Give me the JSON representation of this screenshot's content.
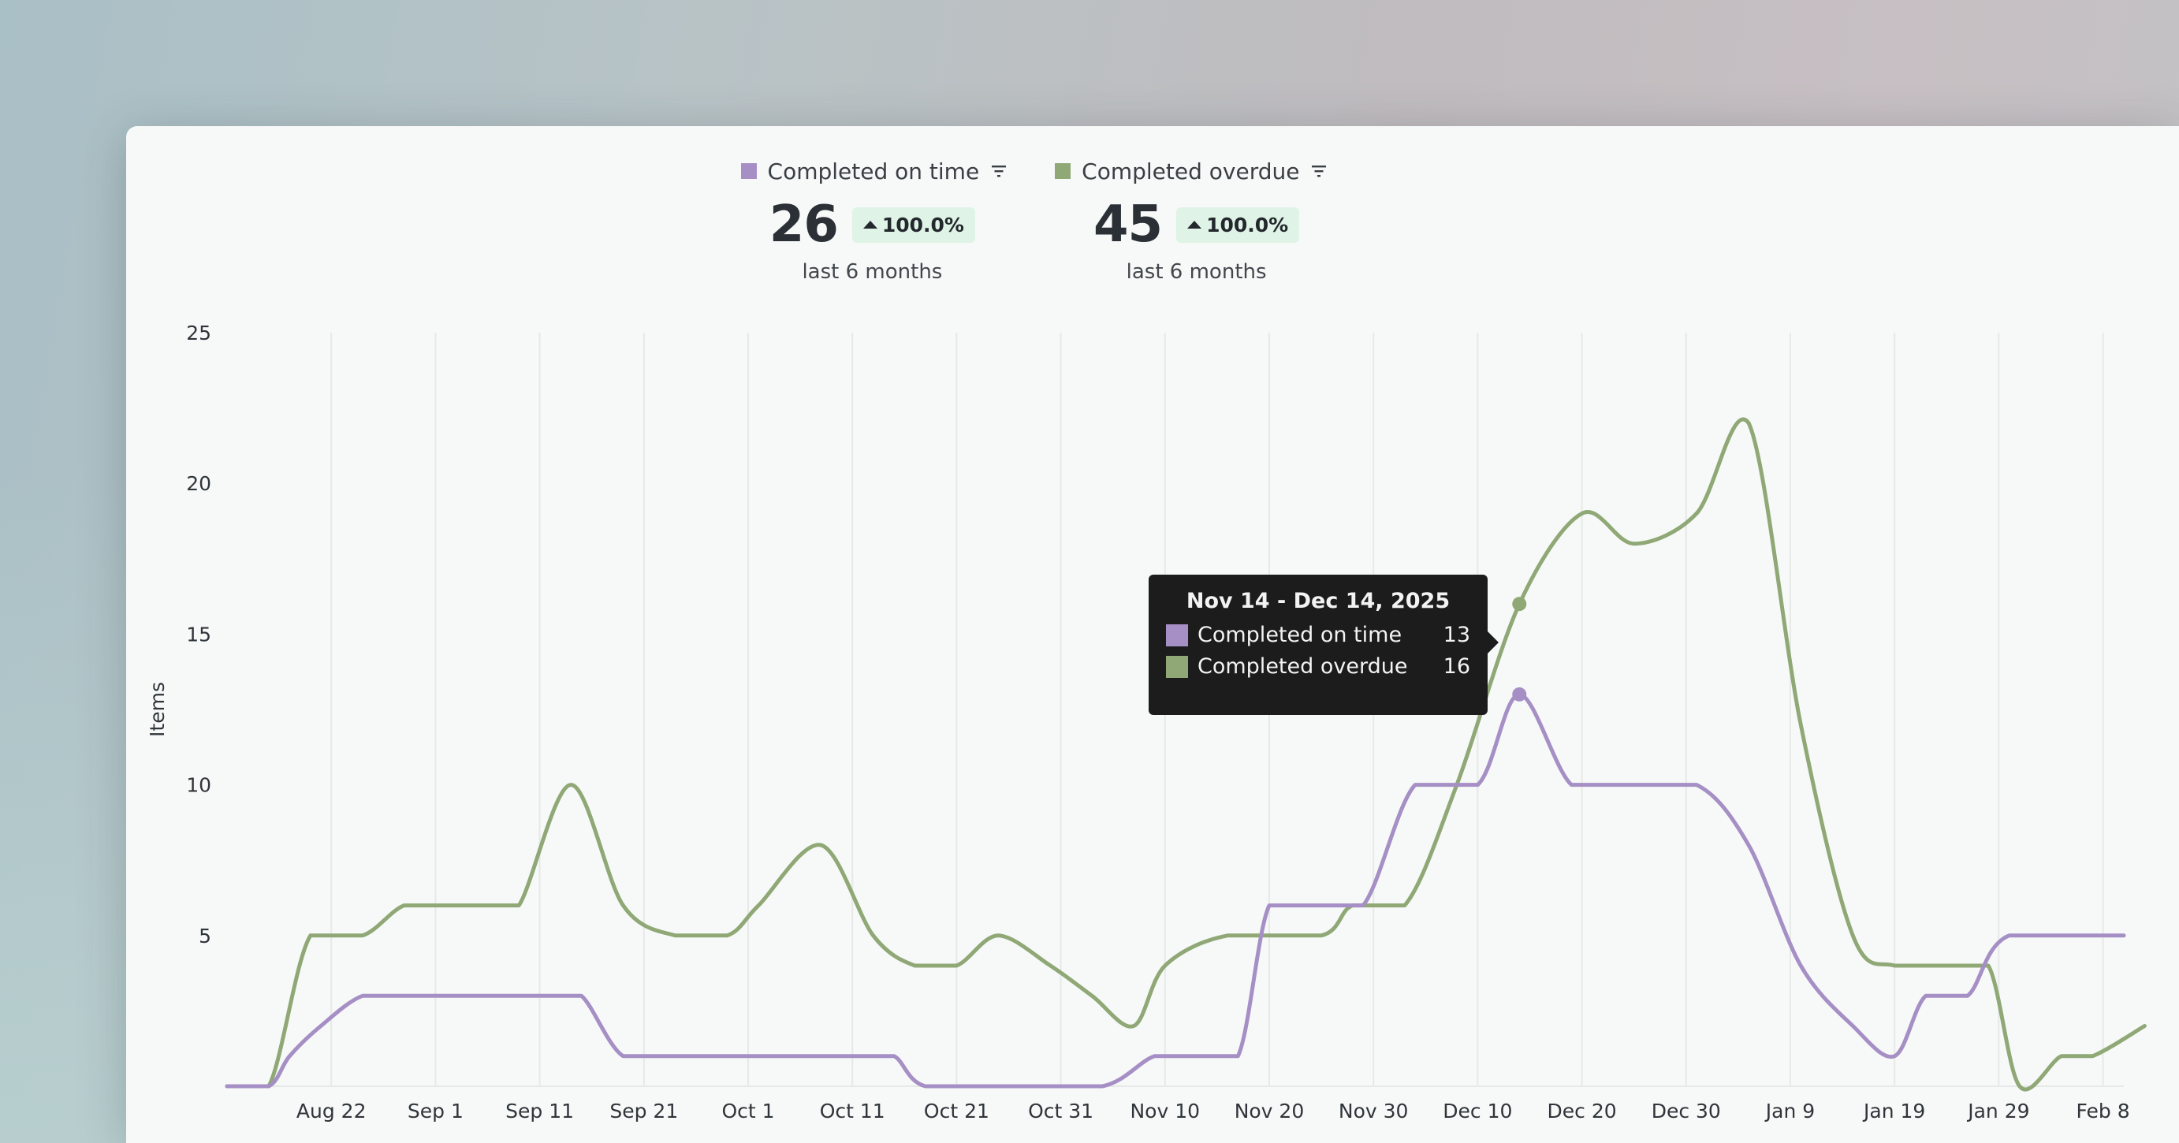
{
  "legend": {
    "items": [
      {
        "label": "Completed on time",
        "color": "#a58fc5",
        "icon": "filter-icon"
      },
      {
        "label": "Completed overdue",
        "color": "#8fa876",
        "icon": "filter-icon"
      }
    ]
  },
  "stats": [
    {
      "value": "26",
      "change": "100.0%",
      "period": "last 6 months"
    },
    {
      "value": "45",
      "change": "100.0%",
      "period": "last 6 months"
    }
  ],
  "tooltip": {
    "title": "Nov 14 - Dec 14, 2025",
    "rows": [
      {
        "label": "Completed on time",
        "value": "13",
        "color": "#a58fc5"
      },
      {
        "label": "Completed overdue",
        "value": "16",
        "color": "#8fa876"
      }
    ]
  },
  "chart_data": {
    "type": "line",
    "ylabel": "Items",
    "xlabel": "",
    "ylim": [
      0,
      25
    ],
    "yticks": [
      "25",
      "20",
      "15",
      "10",
      "5"
    ],
    "xticks": [
      "Aug 22",
      "Sep 1",
      "Sep 11",
      "Sep 21",
      "Oct 1",
      "Oct 11",
      "Oct 21",
      "Oct 31",
      "Nov 10",
      "Nov 20",
      "Nov 30",
      "Dec 10",
      "Dec 20",
      "Dec 30",
      "Jan 9",
      "Jan 19",
      "Jan 29",
      "Feb 8"
    ],
    "grid": true,
    "x_start": "Aug 12",
    "x_end": "Feb 10",
    "series": [
      {
        "name": "Completed on time",
        "color": "#a58fc5",
        "points": [
          [
            "Aug 12",
            0
          ],
          [
            "Aug 16",
            0
          ],
          [
            "Aug 18",
            1
          ],
          [
            "Aug 21",
            2
          ],
          [
            "Aug 25",
            3
          ],
          [
            "Aug 29",
            3
          ],
          [
            "Sep 5",
            3
          ],
          [
            "Sep 12",
            3
          ],
          [
            "Sep 15",
            3
          ],
          [
            "Sep 19",
            1
          ],
          [
            "Sep 24",
            1
          ],
          [
            "Oct 4",
            1
          ],
          [
            "Oct 12",
            1
          ],
          [
            "Oct 15",
            1
          ],
          [
            "Oct 18",
            0
          ],
          [
            "Oct 26",
            0
          ],
          [
            "Nov 4",
            0
          ],
          [
            "Nov 9",
            1
          ],
          [
            "Nov 13",
            1
          ],
          [
            "Nov 17",
            1
          ],
          [
            "Nov 20",
            6
          ],
          [
            "Nov 24",
            6
          ],
          [
            "Nov 29",
            6
          ],
          [
            "Dec 4",
            10
          ],
          [
            "Dec 10",
            10
          ],
          [
            "Dec 14",
            13
          ],
          [
            "Dec 19",
            10
          ],
          [
            "Dec 24",
            10
          ],
          [
            "Dec 31",
            10
          ],
          [
            "Jan 5",
            8
          ],
          [
            "Jan 10",
            4
          ],
          [
            "Jan 15",
            2
          ],
          [
            "Jan 19",
            1
          ],
          [
            "Jan 22",
            3
          ],
          [
            "Jan 26",
            3
          ],
          [
            "Jan 30",
            5
          ],
          [
            "Feb 10",
            5
          ]
        ]
      },
      {
        "name": "Completed overdue",
        "color": "#8fa876",
        "points": [
          [
            "Aug 12",
            0
          ],
          [
            "Aug 16",
            0
          ],
          [
            "Aug 20",
            5
          ],
          [
            "Aug 25",
            5
          ],
          [
            "Aug 29",
            6
          ],
          [
            "Sep 2",
            6
          ],
          [
            "Sep 6",
            6
          ],
          [
            "Sep 9",
            6
          ],
          [
            "Sep 14",
            10
          ],
          [
            "Sep 19",
            6
          ],
          [
            "Sep 24",
            5
          ],
          [
            "Sep 29",
            5
          ],
          [
            "Oct 2",
            6
          ],
          [
            "Oct 8",
            8
          ],
          [
            "Oct 13",
            5
          ],
          [
            "Oct 17",
            4
          ],
          [
            "Oct 21",
            4
          ],
          [
            "Oct 25",
            5
          ],
          [
            "Oct 30",
            4
          ],
          [
            "Nov 3",
            3
          ],
          [
            "Nov 7",
            2
          ],
          [
            "Nov 10",
            4
          ],
          [
            "Nov 16",
            5
          ],
          [
            "Nov 25",
            5
          ],
          [
            "Nov 28",
            6
          ],
          [
            "Dec 3",
            6
          ],
          [
            "Dec 8",
            10
          ],
          [
            "Dec 14",
            16
          ],
          [
            "Dec 20",
            19
          ],
          [
            "Dec 25",
            18
          ],
          [
            "Dec 31",
            19
          ],
          [
            "Jan 5",
            22
          ],
          [
            "Jan 10",
            12
          ],
          [
            "Jan 15",
            5
          ],
          [
            "Jan 19",
            4
          ],
          [
            "Jan 24",
            4
          ],
          [
            "Jan 28",
            4
          ],
          [
            "Jan 31",
            0
          ],
          [
            "Feb 4",
            1
          ],
          [
            "Feb 7",
            1
          ],
          [
            "Feb 12",
            2
          ]
        ]
      }
    ],
    "highlight": {
      "date": "Dec 14",
      "on_time": 13,
      "overdue": 16
    }
  }
}
